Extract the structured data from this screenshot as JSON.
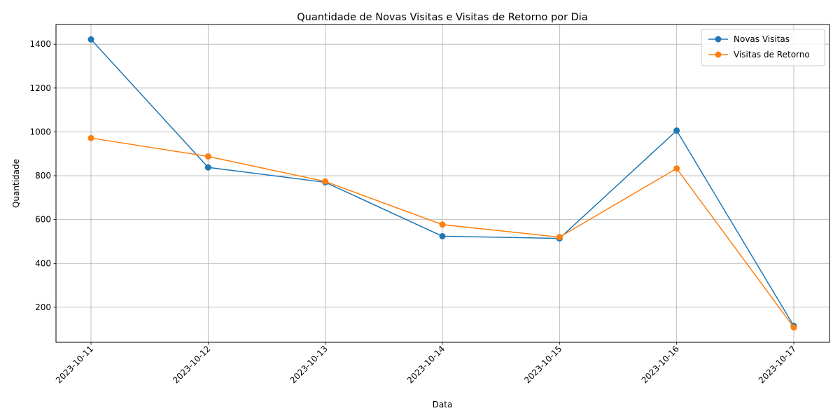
{
  "chart_data": {
    "type": "line",
    "title": "Quantidade de Novas Visitas e Visitas de Retorno por Dia",
    "xlabel": "Data",
    "ylabel": "Quantidade",
    "categories": [
      "2023-10-11",
      "2023-10-12",
      "2023-10-13",
      "2023-10-14",
      "2023-10-15",
      "2023-10-16",
      "2023-10-17"
    ],
    "y_ticks": [
      200,
      400,
      600,
      800,
      1000,
      1200,
      1400
    ],
    "ylim": [
      40,
      1490
    ],
    "grid": true,
    "legend_position": "top-right",
    "series": [
      {
        "name": "Novas Visitas",
        "color": "#1f77b4",
        "values": [
          1422,
          838,
          770,
          524,
          514,
          1006,
          115
        ]
      },
      {
        "name": "Visitas de Retorno",
        "color": "#ff7f0e",
        "values": [
          972,
          888,
          774,
          577,
          520,
          833,
          108
        ]
      }
    ]
  }
}
